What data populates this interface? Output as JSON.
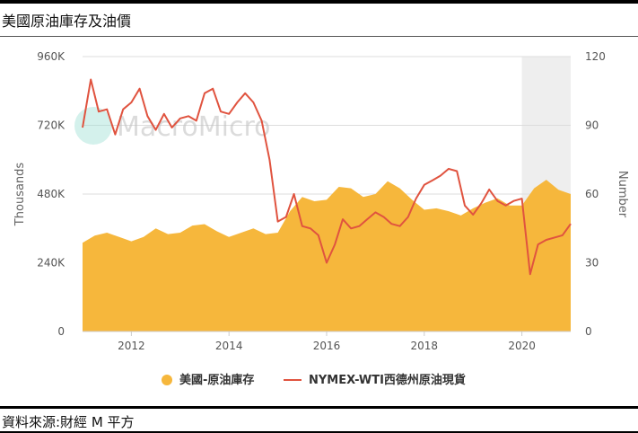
{
  "page": {
    "title": "美國原油庫存及油價",
    "source": "資料來源:財經 M 平方"
  },
  "watermark": "MacroMicro",
  "chart_data": {
    "type": "area",
    "x_ticks": [
      "2012",
      "2014",
      "2016",
      "2018",
      "2020"
    ],
    "x_range": [
      2011.0,
      2021.0
    ],
    "y_left": {
      "label": "Thousands",
      "ticks": [
        "0",
        "240K",
        "480K",
        "720K",
        "960K"
      ],
      "range": [
        0,
        960000
      ]
    },
    "y_right": {
      "label": "Number",
      "ticks": [
        "0",
        "30",
        "60",
        "90",
        "120"
      ],
      "range": [
        0,
        120
      ]
    },
    "highlight_range": [
      2020.0,
      2021.0
    ],
    "grid": true,
    "legend_position": "bottom",
    "colors": {
      "inventory": "#f6b73c",
      "price": "#e0533f",
      "highlight": "#eeeeee",
      "grid": "#dddddd",
      "watermark": "#9fdfd4"
    },
    "series": [
      {
        "name": "美國-原油庫存",
        "kind": "area",
        "axis": "left",
        "x": [
          2011.0,
          2011.25,
          2011.5,
          2011.75,
          2012.0,
          2012.25,
          2012.5,
          2012.75,
          2013.0,
          2013.25,
          2013.5,
          2013.75,
          2014.0,
          2014.25,
          2014.5,
          2014.75,
          2015.0,
          2015.25,
          2015.5,
          2015.75,
          2016.0,
          2016.25,
          2016.5,
          2016.75,
          2017.0,
          2017.25,
          2017.5,
          2017.75,
          2018.0,
          2018.25,
          2018.5,
          2018.75,
          2019.0,
          2019.25,
          2019.5,
          2019.75,
          2020.0,
          2020.25,
          2020.5,
          2020.75,
          2021.0
        ],
        "values": [
          310000,
          335000,
          345000,
          330000,
          315000,
          330000,
          360000,
          340000,
          345000,
          370000,
          375000,
          350000,
          330000,
          345000,
          360000,
          340000,
          345000,
          420000,
          470000,
          455000,
          460000,
          505000,
          500000,
          470000,
          480000,
          525000,
          500000,
          460000,
          425000,
          430000,
          420000,
          405000,
          430000,
          450000,
          465000,
          440000,
          440000,
          500000,
          530000,
          495000,
          480000
        ]
      },
      {
        "name": "NYMEX-WTI西德州原油現貨",
        "kind": "line",
        "axis": "right",
        "x": [
          2011.0,
          2011.17,
          2011.33,
          2011.5,
          2011.67,
          2011.83,
          2012.0,
          2012.17,
          2012.33,
          2012.5,
          2012.67,
          2012.83,
          2013.0,
          2013.17,
          2013.33,
          2013.5,
          2013.67,
          2013.83,
          2014.0,
          2014.17,
          2014.33,
          2014.5,
          2014.67,
          2014.83,
          2015.0,
          2015.17,
          2015.33,
          2015.5,
          2015.67,
          2015.83,
          2016.0,
          2016.17,
          2016.33,
          2016.5,
          2016.67,
          2016.83,
          2017.0,
          2017.17,
          2017.33,
          2017.5,
          2017.67,
          2017.83,
          2018.0,
          2018.17,
          2018.33,
          2018.5,
          2018.67,
          2018.83,
          2019.0,
          2019.17,
          2019.33,
          2019.5,
          2019.67,
          2019.83,
          2020.0,
          2020.17,
          2020.33,
          2020.5,
          2020.67,
          2020.83,
          2021.0
        ],
        "values": [
          89,
          110,
          96,
          97,
          86,
          97,
          100,
          106,
          94,
          88,
          95,
          89,
          93,
          94,
          92,
          104,
          106,
          96,
          95,
          100,
          104,
          100,
          92,
          75,
          48,
          50,
          60,
          46,
          45,
          42,
          30,
          38,
          49,
          45,
          46,
          49,
          52,
          50,
          47,
          46,
          50,
          58,
          64,
          66,
          68,
          71,
          70,
          55,
          51,
          56,
          62,
          57,
          55,
          57,
          58,
          25,
          38,
          40,
          41,
          42,
          47
        ]
      }
    ]
  }
}
